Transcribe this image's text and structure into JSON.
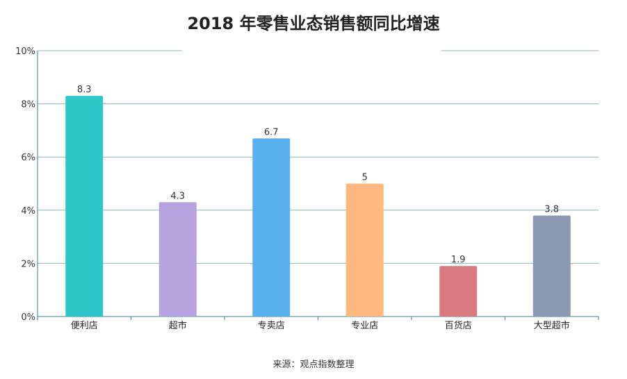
{
  "chart_data": {
    "type": "bar",
    "title": "2018 年零售业态销售额同比增速",
    "categories": [
      "便利店",
      "超市",
      "专卖店",
      "专业店",
      "百货店",
      "大型超市"
    ],
    "values": [
      8.3,
      4.3,
      6.7,
      5,
      1.9,
      3.8
    ],
    "value_labels": [
      "8.3",
      "4.3",
      "6.7",
      "5",
      "1.9",
      "3.8"
    ],
    "colors": [
      "#2ec7c9",
      "#b6a2de",
      "#5ab1ef",
      "#ffb980",
      "#d87a80",
      "#8d98b3"
    ],
    "ylim": [
      0,
      10
    ],
    "yticks": [
      "0%",
      "2%",
      "4%",
      "6%",
      "8%",
      "10%"
    ],
    "grid": true,
    "xlabel": "",
    "ylabel": ""
  },
  "source": "来源：观点指数整理"
}
